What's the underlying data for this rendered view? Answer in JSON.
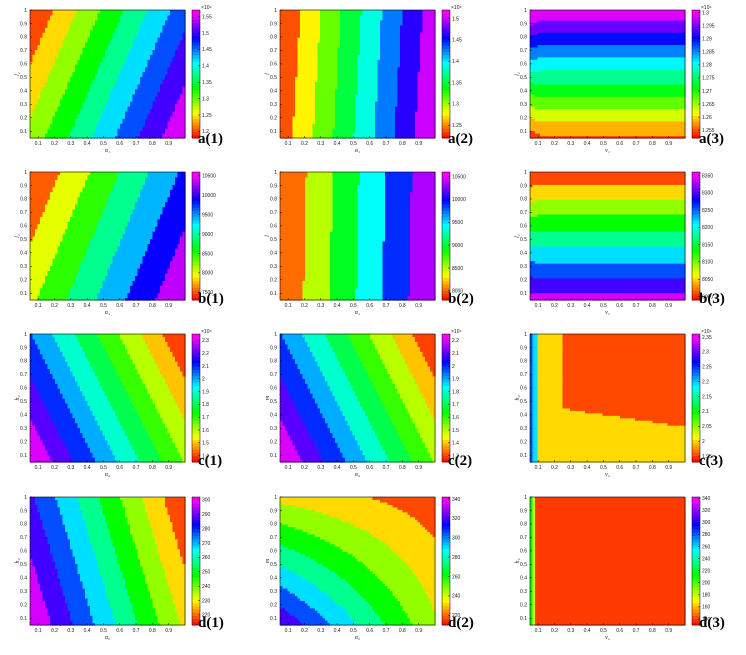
{
  "figure": {
    "label_a": "a",
    "label_b": "b",
    "label_c": "c",
    "label_d": "d",
    "label_1": "(1)",
    "label_2": "(2)",
    "label_3": "(3)"
  },
  "chart_data": [
    {
      "id": "a1",
      "type": "heatmap",
      "label": "a(1)",
      "xlabel": "α₁",
      "ylabel": "l₁",
      "xticks": [
        "0.1",
        "0.2",
        "0.3",
        "0.4",
        "0.5",
        "0.6",
        "0.7",
        "0.8",
        "0.9"
      ],
      "yticks": [
        "0.1",
        "0.2",
        "0.3",
        "0.4",
        "0.5",
        "0.6",
        "0.7",
        "0.8",
        "0.9",
        "1"
      ],
      "colorbar_ticks": [
        "1.55",
        "1.5",
        "1.45",
        "1.4",
        "1.35",
        "1.3",
        "1.25",
        "1.2"
      ],
      "colorbar_exponent": "×10⁴",
      "colorbar_range": [
        1.18,
        1.57
      ],
      "levels": 9,
      "field": {
        "kind": "linear",
        "ax": 0.92,
        "ay": -0.33
      }
    },
    {
      "id": "a2",
      "type": "heatmap",
      "label": "a(2)",
      "xlabel": "α₁",
      "ylabel": "l",
      "xticks": [
        "0.1",
        "0.2",
        "0.3",
        "0.4",
        "0.5",
        "0.6",
        "0.7",
        "0.8",
        "0.9"
      ],
      "yticks": [
        "0.1",
        "0.2",
        "0.3",
        "0.4",
        "0.5",
        "0.6",
        "0.7",
        "0.8",
        "0.9",
        "1"
      ],
      "colorbar_ticks": [
        "1.5",
        "1.45",
        "1.4",
        "1.35",
        "1.3",
        "1.25"
      ],
      "colorbar_exponent": "×10⁴",
      "colorbar_range": [
        1.22,
        1.52
      ],
      "levels": 8,
      "field": {
        "kind": "linear",
        "ax": 0.97,
        "ay": -0.05
      }
    },
    {
      "id": "a3",
      "type": "heatmap",
      "label": "a(3)",
      "xlabel": "ν₁",
      "ylabel": "l₁",
      "xticks": [
        "0.1",
        "0.2",
        "0.3",
        "0.4",
        "0.5",
        "0.6",
        "0.7",
        "0.8",
        "0.9"
      ],
      "yticks": [
        "0.1",
        "0.2",
        "0.3",
        "0.4",
        "0.5",
        "0.6",
        "0.7",
        "0.8",
        "0.9",
        "1"
      ],
      "colorbar_ticks": [
        "1.3",
        "1.295",
        "1.29",
        "1.285",
        "1.28",
        "1.275",
        "1.27",
        "1.265",
        "1.26",
        "1.255"
      ],
      "colorbar_exponent": "×10⁴",
      "colorbar_range": [
        1.252,
        1.301
      ],
      "levels": 11,
      "field": {
        "kind": "a3"
      }
    },
    {
      "id": "b1",
      "type": "heatmap",
      "label": "b(1)",
      "xlabel": "α₁",
      "ylabel": "l₁",
      "xticks": [
        "0.1",
        "0.2",
        "0.3",
        "0.4",
        "0.5",
        "0.6",
        "0.7",
        "0.8",
        "0.9"
      ],
      "yticks": [
        "0.1",
        "0.2",
        "0.3",
        "0.4",
        "0.5",
        "0.6",
        "0.7",
        "0.8",
        "0.9",
        "1"
      ],
      "colorbar_ticks": [
        "10500",
        "10000",
        "9500",
        "9000",
        "8500",
        "8000",
        "7500"
      ],
      "colorbar_exponent": "",
      "colorbar_range": [
        7300,
        10600
      ],
      "levels": 7,
      "field": {
        "kind": "linear",
        "ax": 0.88,
        "ay": -0.3
      }
    },
    {
      "id": "b2",
      "type": "heatmap",
      "label": "b(2)",
      "xlabel": "α₁",
      "ylabel": "l",
      "xticks": [
        "0.1",
        "0.2",
        "0.3",
        "0.4",
        "0.5",
        "0.6",
        "0.7",
        "0.8",
        "0.9"
      ],
      "yticks": [
        "0.1",
        "0.2",
        "0.3",
        "0.4",
        "0.5",
        "0.6",
        "0.7",
        "0.8",
        "0.9",
        "1"
      ],
      "colorbar_ticks": [
        "10500",
        "10000",
        "9500",
        "9000",
        "8500",
        "8000"
      ],
      "colorbar_exponent": "",
      "colorbar_range": [
        7800,
        10600
      ],
      "levels": 6,
      "field": {
        "kind": "linear",
        "ax": 1.0,
        "ay": -0.02
      }
    },
    {
      "id": "b3",
      "type": "heatmap",
      "label": "b(3)",
      "xlabel": "ν₁",
      "ylabel": "l₁",
      "xticks": [
        "0.1",
        "0.2",
        "0.3",
        "0.4",
        "0.5",
        "0.6",
        "0.7",
        "0.8",
        "0.9"
      ],
      "yticks": [
        "0.1",
        "0.2",
        "0.3",
        "0.4",
        "0.5",
        "0.6",
        "0.7",
        "0.8",
        "0.9",
        "1"
      ],
      "colorbar_ticks": [
        "8350",
        "8300",
        "8250",
        "8200",
        "8150",
        "8100",
        "8050",
        "8000"
      ],
      "colorbar_exponent": "",
      "colorbar_range": [
        7990,
        8360
      ],
      "levels": 9,
      "field": {
        "kind": "b3"
      }
    },
    {
      "id": "c1",
      "type": "heatmap",
      "label": "c(1)",
      "xlabel": "α₂",
      "ylabel": "h₂",
      "xticks": [
        "0.1",
        "0.2",
        "0.3",
        "0.4",
        "0.5",
        "0.6",
        "0.7",
        "0.8",
        "0.9"
      ],
      "yticks": [
        "0.1",
        "0.2",
        "0.3",
        "0.4",
        "0.5",
        "0.6",
        "0.7",
        "0.8",
        "0.9",
        "1"
      ],
      "colorbar_ticks": [
        "2.3",
        "2.2",
        "2.1",
        "2",
        "1.9",
        "1.8",
        "1.7",
        "1.6",
        "1.5",
        "1.4"
      ],
      "colorbar_exponent": "×10⁴",
      "colorbar_range": [
        1.35,
        2.35
      ],
      "levels": 10,
      "field": {
        "kind": "linear",
        "ax": -1.0,
        "ay": -0.42
      }
    },
    {
      "id": "c2",
      "type": "heatmap",
      "label": "c(2)",
      "xlabel": "α₂",
      "ylabel": "m",
      "xticks": [
        "0.1",
        "0.2",
        "0.3",
        "0.4",
        "0.5",
        "0.6",
        "0.7",
        "0.8",
        "0.9"
      ],
      "yticks": [
        "0.1",
        "0.2",
        "0.3",
        "0.4",
        "0.5",
        "0.6",
        "0.7",
        "0.8",
        "0.9",
        "1"
      ],
      "colorbar_ticks": [
        "2.2",
        "2.1",
        "2",
        "1.9",
        "1.8",
        "1.7",
        "1.6",
        "1.5",
        "1.4",
        "1.3"
      ],
      "colorbar_exponent": "×10⁴",
      "colorbar_range": [
        1.25,
        2.25
      ],
      "levels": 10,
      "field": {
        "kind": "linear",
        "ax": -1.0,
        "ay": -0.42
      }
    },
    {
      "id": "c3",
      "type": "heatmap",
      "label": "c(3)",
      "xlabel": "ν₂",
      "ylabel": "h₂",
      "xticks": [
        "0.1",
        "0.2",
        "0.3",
        "0.4",
        "0.5",
        "0.6",
        "0.7",
        "0.8",
        "0.9"
      ],
      "yticks": [
        "0.1",
        "0.2",
        "0.3",
        "0.4",
        "0.5",
        "0.6",
        "0.7",
        "0.8",
        "0.9",
        "1"
      ],
      "colorbar_ticks": [
        "2.35",
        "2.3",
        "2.25",
        "2.2",
        "2.15",
        "2.1",
        "2.05",
        "2",
        "1.95"
      ],
      "colorbar_exponent": "×10⁴",
      "colorbar_range": [
        1.93,
        2.36
      ],
      "levels": 9,
      "field": {
        "kind": "c3"
      }
    },
    {
      "id": "d1",
      "type": "heatmap",
      "label": "d(1)",
      "xlabel": "α₂",
      "ylabel": "h₂",
      "xticks": [
        "0.1",
        "0.2",
        "0.3",
        "0.4",
        "0.5",
        "0.6",
        "0.7",
        "0.8",
        "0.9"
      ],
      "yticks": [
        "0.1",
        "0.2",
        "0.3",
        "0.4",
        "0.5",
        "0.6",
        "0.7",
        "0.8",
        "0.9",
        "1"
      ],
      "colorbar_ticks": [
        "300",
        "290",
        "280",
        "270",
        "260",
        "250",
        "240",
        "230",
        "220"
      ],
      "colorbar_exponent": "",
      "colorbar_range": [
        213,
        302
      ],
      "levels": 9,
      "field": {
        "kind": "linear",
        "ax": -1.0,
        "ay": -0.25
      }
    },
    {
      "id": "d2",
      "type": "heatmap",
      "label": "d(2)",
      "xlabel": "α₂",
      "ylabel": "m",
      "xticks": [
        "0.1",
        "0.2",
        "0.3",
        "0.4",
        "0.5",
        "0.6",
        "0.7",
        "0.8",
        "0.9"
      ],
      "yticks": [
        "0.1",
        "0.2",
        "0.3",
        "0.4",
        "0.5",
        "0.6",
        "0.7",
        "0.8",
        "0.9",
        "1"
      ],
      "colorbar_ticks": [
        "340",
        "320",
        "300",
        "280",
        "260",
        "240",
        "220"
      ],
      "colorbar_exponent": "",
      "colorbar_range": [
        210,
        342
      ],
      "levels": 9,
      "field": {
        "kind": "d2"
      }
    },
    {
      "id": "d3",
      "type": "heatmap",
      "label": "d(3)",
      "xlabel": "ν₂",
      "ylabel": "h₂",
      "xticks": [
        "0.1",
        "0.2",
        "0.3",
        "0.4",
        "0.5",
        "0.6",
        "0.7",
        "0.8",
        "0.9"
      ],
      "yticks": [
        "0.1",
        "0.2",
        "0.3",
        "0.4",
        "0.5",
        "0.6",
        "0.7",
        "0.8",
        "0.9",
        "1"
      ],
      "colorbar_ticks": [
        "340",
        "320",
        "300",
        "280",
        "260",
        "240",
        "220",
        "200",
        "180",
        "160",
        "140"
      ],
      "colorbar_exponent": "",
      "colorbar_range": [
        130,
        342
      ],
      "levels": 11,
      "field": {
        "kind": "d3"
      }
    }
  ]
}
